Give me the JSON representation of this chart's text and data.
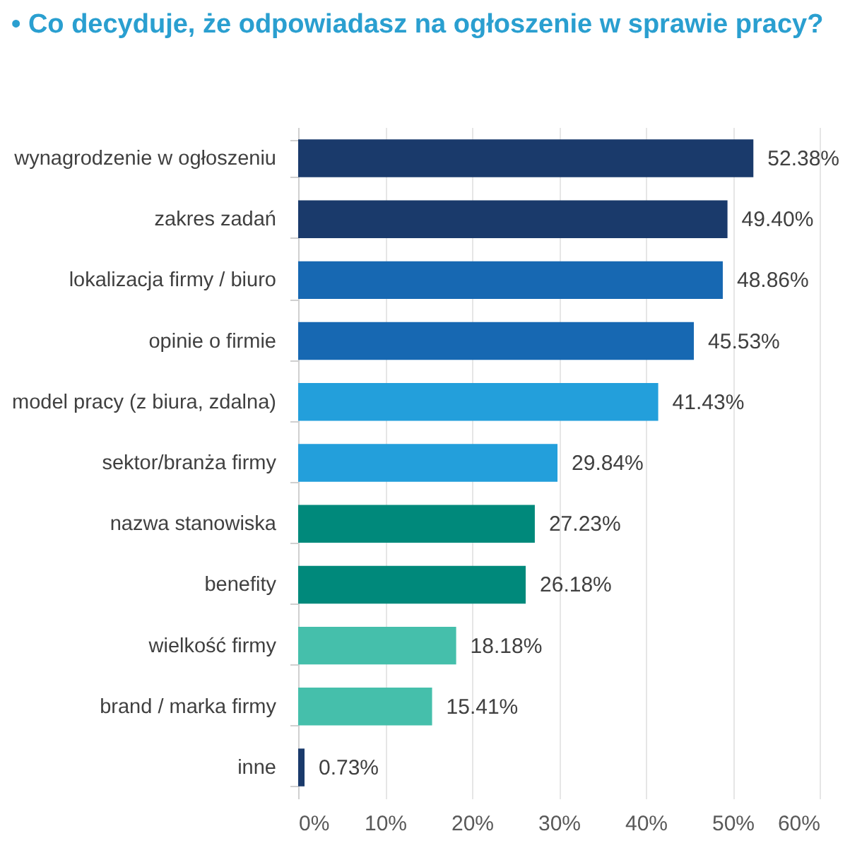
{
  "chart_data": {
    "type": "bar",
    "orientation": "horizontal",
    "title": "•   Co decyduje, że odpowiadasz na ogłoszenie w sprawie pracy?",
    "categories": [
      "wynagrodzenie w ogłoszeniu",
      "zakres zadań",
      "lokalizacja firmy / biuro",
      "opinie o firmie",
      "model pracy (z biura, zdalna)",
      "sektor/branża firmy",
      "nazwa stanowiska",
      "benefity",
      "wielkość firmy",
      "brand / marka firmy",
      "inne"
    ],
    "values": [
      52.38,
      49.4,
      48.86,
      45.53,
      41.43,
      29.84,
      27.23,
      26.18,
      18.18,
      15.41,
      0.73
    ],
    "value_labels": [
      "52.38%",
      "49.40%",
      "48.86%",
      "45.53%",
      "41.43%",
      "29.84%",
      "27.23%",
      "26.18%",
      "18.18%",
      "15.41%",
      "0.73%"
    ],
    "colors": [
      "#1a3a6b",
      "#1a3a6b",
      "#1768b2",
      "#1768b2",
      "#239fdb",
      "#239fdb",
      "#00897b",
      "#00897b",
      "#45bfab",
      "#45bfab",
      "#1a3a6b"
    ],
    "xlim": [
      0,
      60
    ],
    "xticks": [
      {
        "value": 0,
        "label": "0%"
      },
      {
        "value": 10,
        "label": "10%"
      },
      {
        "value": 20,
        "label": "20%"
      },
      {
        "value": 30,
        "label": "30%"
      },
      {
        "value": 40,
        "label": "40%"
      },
      {
        "value": 50,
        "label": "50%"
      },
      {
        "value": 60,
        "label": "60%"
      }
    ],
    "grid": "x",
    "legend": false
  }
}
